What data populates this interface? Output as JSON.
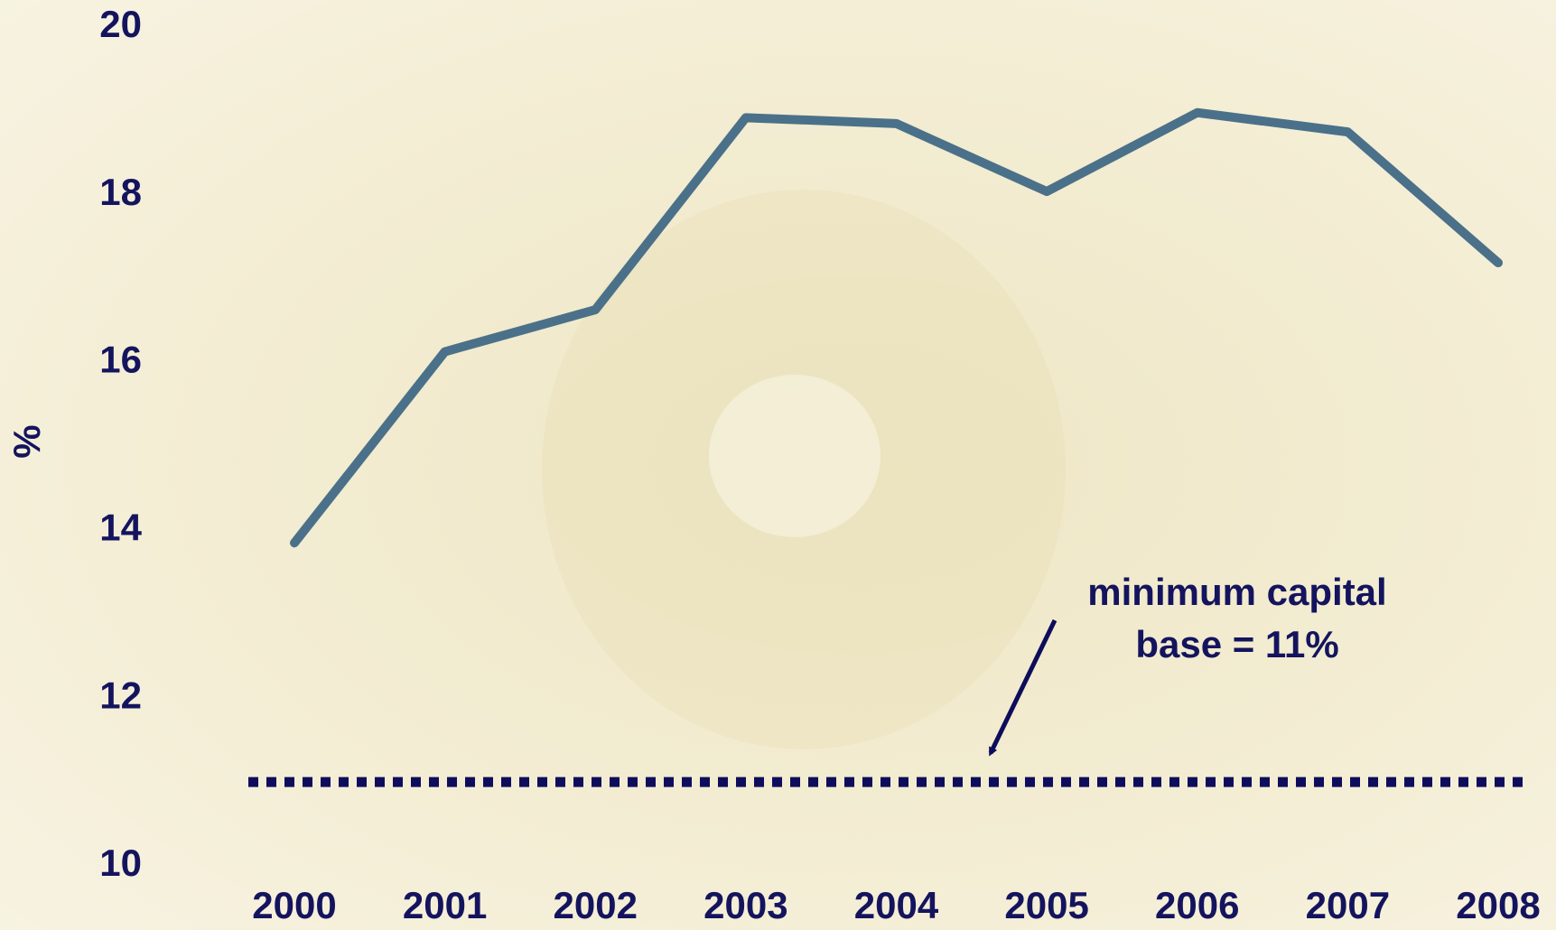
{
  "chart_data": {
    "type": "line",
    "y_label": "%",
    "categories": [
      "2000",
      "2001",
      "2002",
      "2003",
      "2004",
      "2005",
      "2006",
      "2007",
      "2008"
    ],
    "series": [
      {
        "color": "#4a7189",
        "values": [
          13.85,
          16.13,
          16.63,
          18.92,
          18.85,
          18.04,
          18.98,
          18.75,
          17.19
        ]
      }
    ],
    "ylim": [
      10,
      20
    ],
    "yticks": [
      10,
      12,
      14,
      16,
      18,
      20
    ],
    "reference_line": {
      "value": 11,
      "color": "#0d0d5c",
      "label_lines": [
        "minimum capital",
        "base = 11%"
      ]
    }
  }
}
